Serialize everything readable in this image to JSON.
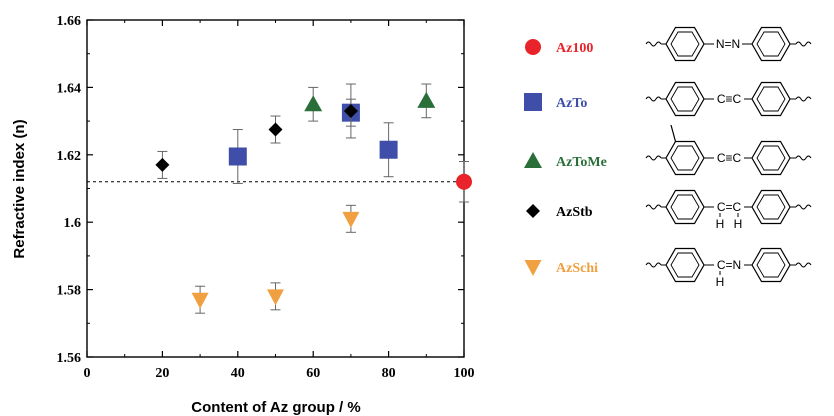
{
  "chart_data": {
    "type": "scatter",
    "xlabel": "Content of Az group / %",
    "ylabel": "Refractive index (n)",
    "xlim": [
      0,
      100
    ],
    "ylim": [
      1.56,
      1.66
    ],
    "xticks": [
      "0",
      "20",
      "40",
      "60",
      "80",
      "100"
    ],
    "yticks": [
      "1.56",
      "1.58",
      "1.6",
      "1.62",
      "1.64",
      "1.66"
    ],
    "reference_line": {
      "y": 1.612,
      "style": "dashed"
    },
    "legend_placement": "right",
    "series": [
      {
        "name": "Az100",
        "marker": "circle",
        "color": "#e8242a",
        "points": [
          {
            "x": 100,
            "y": 1.612,
            "err": 0.006
          }
        ]
      },
      {
        "name": "AzTo",
        "marker": "square",
        "color": "#3f4ea8",
        "points": [
          {
            "x": 40,
            "y": 1.6195,
            "err": 0.008
          },
          {
            "x": 70,
            "y": 1.6325,
            "err": 0.004
          },
          {
            "x": 80,
            "y": 1.6215,
            "err": 0.008
          }
        ]
      },
      {
        "name": "AzToMe",
        "marker": "triangle-up",
        "color": "#2a6e3a",
        "points": [
          {
            "x": 60,
            "y": 1.635,
            "err": 0.005
          },
          {
            "x": 90,
            "y": 1.636,
            "err": 0.005
          }
        ]
      },
      {
        "name": "AzStb",
        "marker": "diamond",
        "color": "#000000",
        "points": [
          {
            "x": 20,
            "y": 1.617,
            "err": 0.004
          },
          {
            "x": 50,
            "y": 1.6275,
            "err": 0.004
          },
          {
            "x": 70,
            "y": 1.633,
            "err": 0.008
          }
        ]
      },
      {
        "name": "AzSchi",
        "marker": "triangle-down",
        "color": "#f0a040",
        "points": [
          {
            "x": 30,
            "y": 1.577,
            "err": 0.004
          },
          {
            "x": 50,
            "y": 1.578,
            "err": 0.004
          },
          {
            "x": 70,
            "y": 1.601,
            "err": 0.004
          }
        ]
      }
    ]
  },
  "structures": {
    "AzStb": {
      "h1": "H",
      "h2": "H"
    },
    "AzSchi": {
      "h1": "H",
      "n": "N"
    }
  },
  "icons": [
    "azobenzene-structure-icon",
    "tolane-structure-icon",
    "methyl-tolane-structure-icon",
    "stilbene-structure-icon",
    "schiff-base-structure-icon"
  ]
}
